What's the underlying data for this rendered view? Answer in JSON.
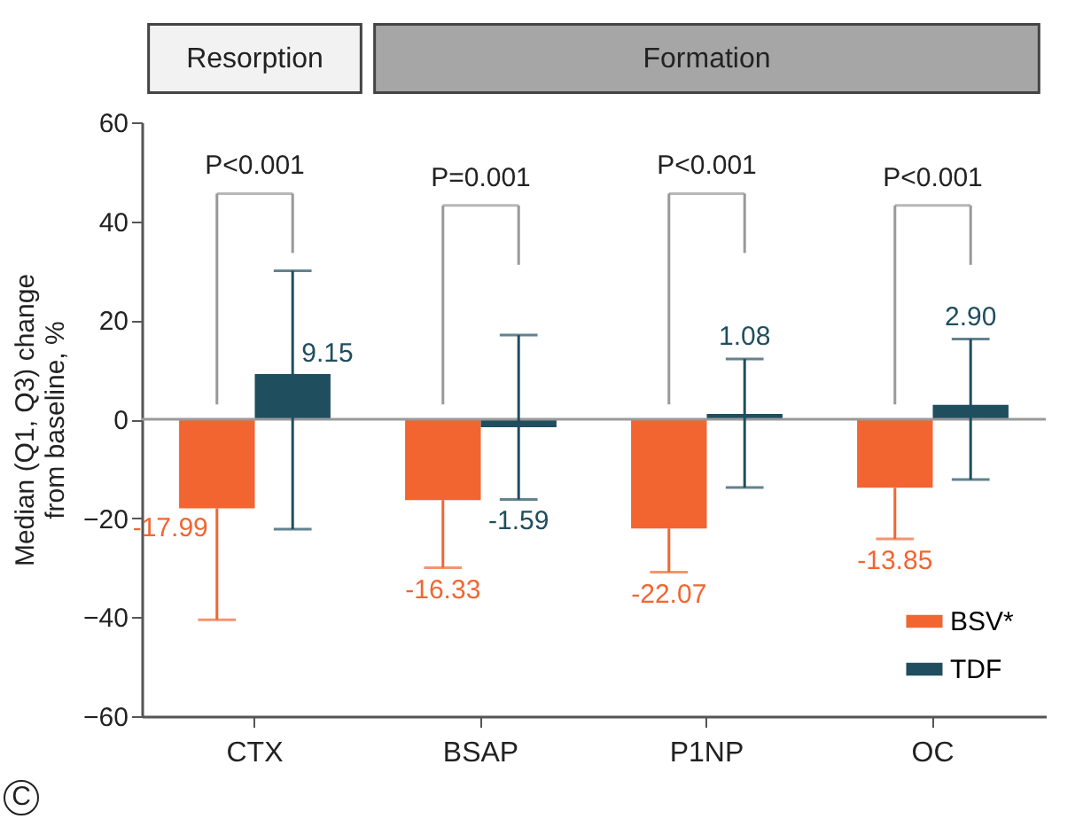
{
  "chart_data": {
    "type": "bar",
    "ylabel": "Median (Q1, Q3) change from baseline, %",
    "categories": [
      "CTX",
      "BSAP",
      "P1NP",
      "OC"
    ],
    "series": [
      {
        "name": "BSV*",
        "color": "#f26531",
        "values": [
          -17.99,
          -16.33,
          -22.07,
          -13.85
        ],
        "errors": [
          [
            -40.5,
            -17.99
          ],
          [
            -30,
            -16.33
          ],
          [
            -30.9,
            -22.07
          ],
          [
            -24.2,
            -13.85
          ]
        ],
        "value_labels": [
          "-17.99",
          "-16.33",
          "-22.07",
          "-13.85"
        ]
      },
      {
        "name": "TDF",
        "color": "#1f4e5f",
        "values": [
          9.15,
          -1.59,
          1.08,
          2.9
        ],
        "errors": [
          [
            -22.2,
            30
          ],
          [
            -16.2,
            17
          ],
          [
            -13.8,
            12.2
          ],
          [
            -12.2,
            16.2
          ]
        ],
        "value_labels": [
          "9.15",
          "-1.59",
          "1.08",
          "2.90"
        ]
      }
    ],
    "ylim": [
      -60,
      60
    ],
    "yticks": [
      -60,
      -40,
      -20,
      0,
      20,
      40,
      60
    ],
    "legend": "bottom right",
    "ref_lines": [
      {
        "axis": "y",
        "value": 0,
        "color": "#999999"
      }
    ],
    "annotations": [
      "Resorption",
      "Formation",
      "P<0.001",
      "P=0.001",
      "P<0.001",
      "P<0.001",
      "C"
    ]
  }
}
